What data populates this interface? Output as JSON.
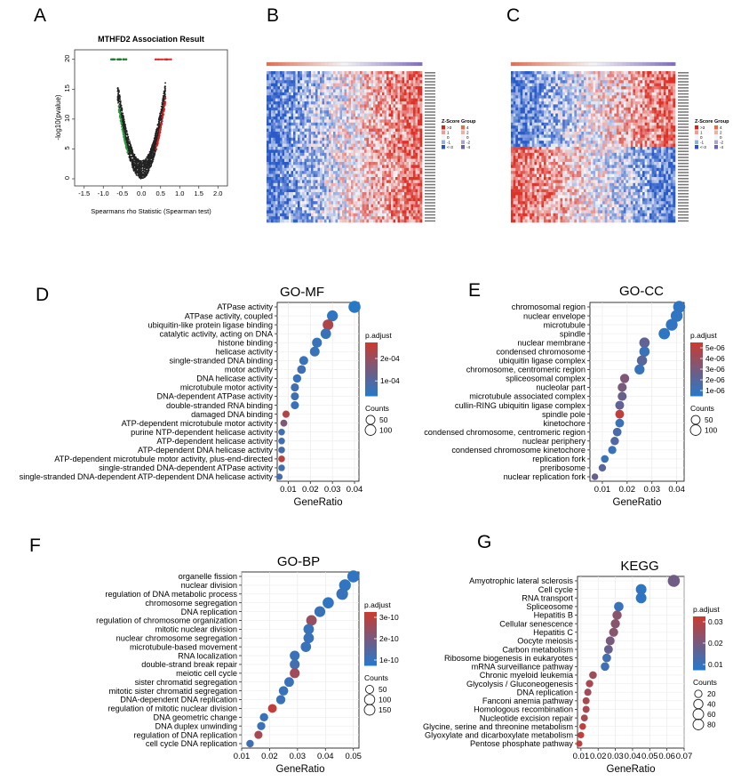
{
  "panels": {
    "A": {
      "letter": "A",
      "title": "MTHFD2 Association Result",
      "ylabel": "-log10(pvalue)",
      "xlabel": "Spearmans rho Statistic (Spearman test)",
      "xticks": [
        "-1.5",
        "-1.0",
        "-0.5",
        "0.0",
        "0.5",
        "1.0",
        "1.5",
        "2.0"
      ],
      "yticks": [
        "0",
        "5",
        "10",
        "15",
        "20"
      ]
    },
    "B": {
      "letter": "B",
      "legend_zscore_title": "Z-Score",
      "legend_group_title": "Group",
      "zscore_labels": [
        ">3",
        "1",
        "0",
        "-1",
        "<-3"
      ],
      "group_labels": [
        "4",
        "2",
        "0",
        "-2",
        "-4"
      ]
    },
    "C": {
      "letter": "C",
      "legend_zscore_title": "Z-Score",
      "legend_group_title": "Group",
      "zscore_labels": [
        ">3",
        "1",
        "0",
        "-1",
        "<-3"
      ],
      "group_labels": [
        "4",
        "2",
        "0",
        "-2",
        "-4"
      ]
    },
    "D": {
      "letter": "D"
    },
    "E": {
      "letter": "E"
    },
    "F": {
      "letter": "F"
    },
    "G": {
      "letter": "G"
    }
  },
  "chart_data": [
    {
      "id": "D",
      "type": "scatter",
      "title": "GO-MF",
      "xlabel": "GeneRatio",
      "xlim": [
        0.005,
        0.042
      ],
      "xticks": [
        0.01,
        0.02,
        0.03,
        0.04
      ],
      "xtick_labels": [
        "0.01",
        "0.02",
        "0.03",
        "0.04"
      ],
      "colorbar_title": "p.adjust",
      "colorbar_labels": [
        "2e-04",
        "1e-04"
      ],
      "size_title": "Counts",
      "size_labels": [
        "50",
        "100"
      ],
      "terms": [
        "ATPase activity",
        "ATPase activity, coupled",
        "ubiquitin-like protein ligase binding",
        "catalytic activity, acting on DNA",
        "histone binding",
        "helicase activity",
        "single-stranded DNA binding",
        "motor activity",
        "DNA helicase activity",
        "microtubule motor activity",
        "DNA-dependent ATPase activity",
        "double-stranded RNA binding",
        "damaged DNA binding",
        "ATP-dependent microtubule motor activity",
        "purine NTP-dependent helicase activity",
        "ATP-dependent helicase activity",
        "ATP-dependent DNA helicase activity",
        "ATP-dependent microtubule motor activity, plus-end-directed",
        "single-stranded DNA-dependent ATPase activity",
        "single-stranded DNA-dependent ATP-dependent DNA helicase activity"
      ],
      "gene_ratio": [
        0.04,
        0.03,
        0.028,
        0.027,
        0.023,
        0.022,
        0.017,
        0.016,
        0.014,
        0.013,
        0.013,
        0.013,
        0.009,
        0.008,
        0.007,
        0.007,
        0.007,
        0.007,
        0.007,
        0.006
      ],
      "counts": [
        115,
        88,
        82,
        78,
        66,
        64,
        50,
        46,
        41,
        38,
        37,
        37,
        26,
        23,
        20,
        20,
        20,
        20,
        19,
        17
      ],
      "color_norm": [
        0.0,
        0.05,
        0.85,
        0.1,
        0.1,
        0.1,
        0.1,
        0.15,
        0.1,
        0.15,
        0.15,
        0.1,
        0.85,
        0.55,
        0.15,
        0.15,
        0.2,
        0.9,
        0.15,
        0.2
      ]
    },
    {
      "id": "E",
      "type": "scatter",
      "title": "GO-CC",
      "xlabel": "GeneRatio",
      "xlim": [
        0.005,
        0.043
      ],
      "xticks": [
        0.01,
        0.02,
        0.03,
        0.04
      ],
      "xtick_labels": [
        "0.01",
        "0.02",
        "0.03",
        "0.04"
      ],
      "colorbar_title": "p.adjust",
      "colorbar_labels": [
        "5e-06",
        "4e-06",
        "3e-06",
        "2e-06",
        "1e-06"
      ],
      "size_title": "Counts",
      "size_labels": [
        "50",
        "100"
      ],
      "terms": [
        "chromosomal region",
        "nuclear envelope",
        "microtubule",
        "spindle",
        "nuclear membrane",
        "condensed chromosome",
        "ubiquitin ligase complex",
        "chromosome, centromeric region",
        "spliceosomal complex",
        "nucleolar part",
        "microtubule associated complex",
        "cullin-RING ubiquitin ligase complex",
        "spindle pole",
        "kinetochore",
        "condensed chromosome, centromeric region",
        "nuclear periphery",
        "condensed chromosome kinetochore",
        "replication fork",
        "preribosome",
        "nuclear replication fork"
      ],
      "gene_ratio": [
        0.041,
        0.04,
        0.038,
        0.035,
        0.027,
        0.027,
        0.026,
        0.025,
        0.019,
        0.018,
        0.018,
        0.017,
        0.017,
        0.017,
        0.016,
        0.015,
        0.014,
        0.011,
        0.01,
        0.007
      ],
      "counts": [
        118,
        115,
        110,
        100,
        78,
        77,
        75,
        72,
        55,
        52,
        52,
        50,
        49,
        48,
        46,
        43,
        40,
        32,
        29,
        20
      ],
      "color_norm": [
        0.05,
        0.05,
        0.05,
        0.05,
        0.35,
        0.1,
        0.3,
        0.1,
        0.55,
        0.5,
        0.4,
        0.35,
        0.95,
        0.1,
        0.2,
        0.25,
        0.1,
        0.1,
        0.3,
        0.4
      ]
    },
    {
      "id": "F",
      "type": "scatter",
      "title": "GO-BP",
      "xlabel": "GeneRatio",
      "xlim": [
        0.01,
        0.052
      ],
      "xticks": [
        0.01,
        0.02,
        0.03,
        0.04,
        0.05
      ],
      "xtick_labels": [
        "0.01",
        "0.02",
        "0.03",
        "0.04",
        "0.05"
      ],
      "colorbar_title": "p.adjust",
      "colorbar_labels": [
        "3e-10",
        "2e-10",
        "1e-10"
      ],
      "size_title": "Counts",
      "size_labels": [
        "50",
        "100",
        "150"
      ],
      "terms": [
        "organelle fission",
        "nuclear division",
        "regulation of DNA metabolic process",
        "chromosome segregation",
        "DNA replication",
        "regulation of chromosome organization",
        "mitotic nuclear division",
        "nuclear chromosome segregation",
        "microtubule-based movement",
        "RNA localization",
        "double-strand break repair",
        "meiotic cell cycle",
        "sister chromatid segregation",
        "mitotic sister chromatid segregation",
        "DNA-dependent DNA replication",
        "regulation of mitotic nuclear division",
        "DNA geometric change",
        "DNA duplex unwinding",
        "regulation of DNA replication",
        "cell cycle DNA replication"
      ],
      "gene_ratio": [
        0.05,
        0.047,
        0.046,
        0.041,
        0.038,
        0.035,
        0.034,
        0.034,
        0.033,
        0.029,
        0.029,
        0.029,
        0.027,
        0.025,
        0.024,
        0.021,
        0.018,
        0.017,
        0.016,
        0.013
      ],
      "counts": [
        155,
        145,
        143,
        128,
        118,
        108,
        106,
        105,
        102,
        90,
        90,
        90,
        84,
        78,
        74,
        65,
        56,
        53,
        50,
        40
      ],
      "color_norm": [
        0.05,
        0.05,
        0.1,
        0.05,
        0.1,
        0.7,
        0.1,
        0.1,
        0.1,
        0.1,
        0.15,
        0.75,
        0.1,
        0.1,
        0.1,
        0.95,
        0.1,
        0.1,
        0.8,
        0.15
      ]
    },
    {
      "id": "G",
      "type": "scatter",
      "title": "KEGG",
      "xlabel": "GeneRatio",
      "xlim": [
        0.008,
        0.07
      ],
      "xticks": [
        0.01,
        0.02,
        0.03,
        0.04,
        0.05,
        0.06,
        0.07
      ],
      "xtick_labels": [
        "0.01",
        "0.02",
        "0.03",
        "0.04",
        "0.05",
        "0.06",
        "0.07"
      ],
      "colorbar_title": "p.adjust",
      "colorbar_labels": [
        "0.03",
        "0.02",
        "0.01"
      ],
      "size_title": "Counts",
      "size_labels": [
        "20",
        "40",
        "60",
        "80"
      ],
      "terms": [
        "Amyotrophic lateral sclerosis",
        "Cell cycle",
        "RNA transport",
        "Spliceosome",
        "Hepatitis B",
        "Cellular senescence",
        "Hepatitis C",
        "Oocyte meiosis",
        "Carbon metabolism",
        "Ribosome biogenesis in eukaryotes",
        "mRNA surveillance pathway",
        "Chronic myeloid leukemia",
        "Glycolysis / Gluconeogenesis",
        "DNA replication",
        "Fanconi anemia pathway",
        "Homologous recombination",
        "Nucleotide excision repair",
        "Glycine, serine and threonine metabolism",
        "Glyoxylate and dicarboxylate metabolism",
        "Pentose phosphate pathway"
      ],
      "gene_ratio": [
        0.064,
        0.045,
        0.045,
        0.032,
        0.031,
        0.03,
        0.029,
        0.027,
        0.026,
        0.025,
        0.024,
        0.017,
        0.015,
        0.014,
        0.013,
        0.013,
        0.012,
        0.011,
        0.01,
        0.009
      ],
      "counts": [
        82,
        58,
        58,
        42,
        40,
        39,
        37,
        35,
        34,
        33,
        31,
        22,
        20,
        18,
        17,
        17,
        16,
        14,
        13,
        12
      ],
      "color_norm": [
        0.45,
        0.05,
        0.05,
        0.1,
        0.6,
        0.6,
        0.6,
        0.5,
        0.4,
        0.15,
        0.15,
        0.75,
        0.8,
        0.75,
        0.8,
        0.8,
        0.8,
        0.95,
        0.95,
        0.95
      ]
    }
  ]
}
